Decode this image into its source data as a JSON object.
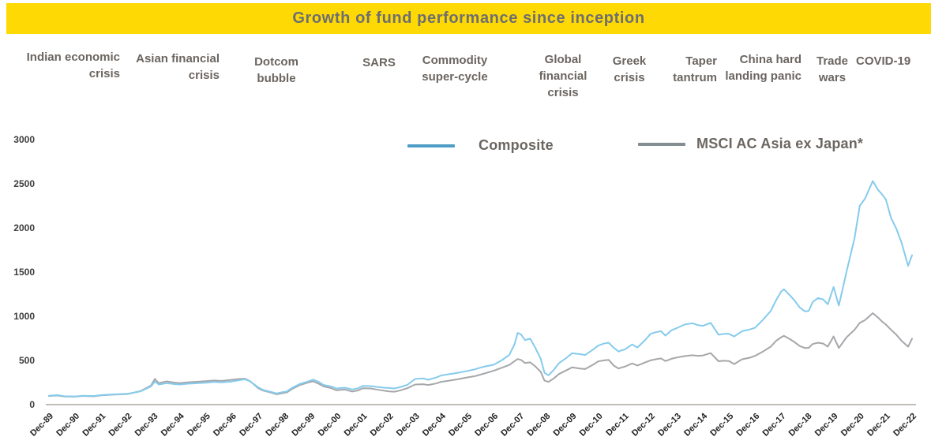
{
  "banner": {
    "title": "Growth of fund performance since inception",
    "background_color": "#FFD903",
    "text_color": "#6D6E71"
  },
  "crisis_labels": [
    "Indian economic crisis",
    "Asian financial crisis",
    "Dotcom bubble",
    "SARS",
    "Commodity super-cycle",
    "Global financial crisis",
    "Greek crisis",
    "Taper tantrum",
    "China hard landing panic",
    "Trade wars",
    "COVID-19"
  ],
  "legend": [
    {
      "label": "Composite",
      "color": "#4E9DC6"
    },
    {
      "label": "MSCI AC Asia ex Japan*",
      "color": "#838D94"
    }
  ],
  "chart_data": {
    "type": "line",
    "title": "Growth of fund performance since inception",
    "xlabel": "",
    "ylabel": "",
    "ylim": [
      0,
      3000
    ],
    "grid": false,
    "legend_position": "top",
    "axis_color": "#9C968C",
    "y_ticks": [
      0,
      500,
      1000,
      1500,
      2000,
      2500,
      3000
    ],
    "x_labels": [
      "Dec-89",
      "Dec-90",
      "Dec-91",
      "Dec-92",
      "Dec-93",
      "Dec-94",
      "Dec-95",
      "Dec-96",
      "Dec-97",
      "Dec-98",
      "Dec-99",
      "Dec-00",
      "Dec-01",
      "Dec-02",
      "Dec-03",
      "Dec-04",
      "Dec-05",
      "Dec-06",
      "Dec-07",
      "Dec-08",
      "Dec-09",
      "Dec-10",
      "Dec-11",
      "Dec-12",
      "Dec-13",
      "Dec-14",
      "Dec-15",
      "Dec-16",
      "Dec-17",
      "Dec-18",
      "Dec-19",
      "Dec-20",
      "Dec-21",
      "Dec-22"
    ],
    "x_unit": "years since Dec-1989",
    "series": [
      {
        "id": "msci-line",
        "name": "MSCI AC Asia ex Japan*",
        "color": "#A5A7AA",
        "points": [
          [
            0,
            97
          ],
          [
            0.3,
            104
          ],
          [
            0.6,
            92
          ],
          [
            1,
            90
          ],
          [
            1.3,
            98
          ],
          [
            1.7,
            94
          ],
          [
            2,
            105
          ],
          [
            2.5,
            113
          ],
          [
            3,
            120
          ],
          [
            3.5,
            153
          ],
          [
            3.9,
            215
          ],
          [
            4.05,
            291
          ],
          [
            4.2,
            243
          ],
          [
            4.5,
            263
          ],
          [
            4.8,
            249
          ],
          [
            5,
            243
          ],
          [
            5.3,
            252
          ],
          [
            5.6,
            258
          ],
          [
            6,
            266
          ],
          [
            6.3,
            273
          ],
          [
            6.6,
            269
          ],
          [
            7,
            281
          ],
          [
            7.3,
            291
          ],
          [
            7.5,
            293
          ],
          [
            7.7,
            263
          ],
          [
            8,
            186
          ],
          [
            8.2,
            158
          ],
          [
            8.5,
            136
          ],
          [
            8.7,
            117
          ],
          [
            8.9,
            129
          ],
          [
            9.1,
            139
          ],
          [
            9.3,
            178
          ],
          [
            9.6,
            222
          ],
          [
            9.9,
            250
          ],
          [
            10.1,
            263
          ],
          [
            10.3,
            238
          ],
          [
            10.5,
            206
          ],
          [
            10.8,
            186
          ],
          [
            11,
            162
          ],
          [
            11.3,
            171
          ],
          [
            11.6,
            148
          ],
          [
            11.8,
            159
          ],
          [
            12,
            186
          ],
          [
            12.3,
            183
          ],
          [
            12.5,
            172
          ],
          [
            12.8,
            158
          ],
          [
            13,
            150
          ],
          [
            13.2,
            146
          ],
          [
            13.4,
            158
          ],
          [
            13.7,
            186
          ],
          [
            14,
            228
          ],
          [
            14.3,
            231
          ],
          [
            14.5,
            222
          ],
          [
            14.8,
            239
          ],
          [
            15,
            258
          ],
          [
            15.3,
            271
          ],
          [
            15.6,
            286
          ],
          [
            16,
            308
          ],
          [
            16.3,
            323
          ],
          [
            16.6,
            348
          ],
          [
            17,
            383
          ],
          [
            17.3,
            416
          ],
          [
            17.6,
            449
          ],
          [
            17.8,
            492
          ],
          [
            17.92,
            516
          ],
          [
            18.05,
            506
          ],
          [
            18.2,
            471
          ],
          [
            18.4,
            479
          ],
          [
            18.6,
            431
          ],
          [
            18.8,
            371
          ],
          [
            18.95,
            271
          ],
          [
            19.1,
            257
          ],
          [
            19.3,
            296
          ],
          [
            19.5,
            346
          ],
          [
            19.8,
            391
          ],
          [
            20,
            421
          ],
          [
            20.3,
            409
          ],
          [
            20.5,
            403
          ],
          [
            20.8,
            451
          ],
          [
            21,
            489
          ],
          [
            21.2,
            500
          ],
          [
            21.4,
            506
          ],
          [
            21.6,
            441
          ],
          [
            21.78,
            409
          ],
          [
            21.9,
            421
          ],
          [
            22,
            429
          ],
          [
            22.3,
            466
          ],
          [
            22.5,
            443
          ],
          [
            22.8,
            479
          ],
          [
            23,
            501
          ],
          [
            23.2,
            513
          ],
          [
            23.4,
            523
          ],
          [
            23.57,
            493
          ],
          [
            23.8,
            519
          ],
          [
            24,
            533
          ],
          [
            24.3,
            549
          ],
          [
            24.6,
            559
          ],
          [
            24.8,
            553
          ],
          [
            25,
            556
          ],
          [
            25.3,
            583
          ],
          [
            25.6,
            491
          ],
          [
            25.8,
            496
          ],
          [
            26,
            493
          ],
          [
            26.2,
            459
          ],
          [
            26.5,
            513
          ],
          [
            26.8,
            531
          ],
          [
            27,
            553
          ],
          [
            27.3,
            601
          ],
          [
            27.6,
            656
          ],
          [
            27.8,
            721
          ],
          [
            28,
            763
          ],
          [
            28.1,
            779
          ],
          [
            28.3,
            746
          ],
          [
            28.5,
            709
          ],
          [
            28.7,
            663
          ],
          [
            28.9,
            641
          ],
          [
            29.05,
            643
          ],
          [
            29.2,
            686
          ],
          [
            29.4,
            701
          ],
          [
            29.6,
            691
          ],
          [
            29.78,
            656
          ],
          [
            30,
            771
          ],
          [
            30.2,
            641
          ],
          [
            30.5,
            763
          ],
          [
            30.8,
            846
          ],
          [
            31,
            926
          ],
          [
            31.2,
            956
          ],
          [
            31.5,
            1036
          ],
          [
            31.7,
            986
          ],
          [
            31.85,
            941
          ],
          [
            32,
            906
          ],
          [
            32.2,
            846
          ],
          [
            32.4,
            791
          ],
          [
            32.6,
            721
          ],
          [
            32.85,
            656
          ],
          [
            33,
            746
          ]
        ]
      },
      {
        "id": "composite-line",
        "name": "Composite",
        "color": "#85CBEC",
        "points": [
          [
            0,
            100
          ],
          [
            0.3,
            108
          ],
          [
            0.6,
            95
          ],
          [
            1,
            93
          ],
          [
            1.3,
            101
          ],
          [
            1.7,
            97
          ],
          [
            2,
            108
          ],
          [
            2.5,
            116
          ],
          [
            3,
            122
          ],
          [
            3.5,
            150
          ],
          [
            3.9,
            205
          ],
          [
            4.05,
            262
          ],
          [
            4.2,
            228
          ],
          [
            4.5,
            243
          ],
          [
            4.8,
            232
          ],
          [
            5,
            228
          ],
          [
            5.3,
            237
          ],
          [
            5.6,
            241
          ],
          [
            6,
            248
          ],
          [
            6.3,
            256
          ],
          [
            6.6,
            252
          ],
          [
            7,
            262
          ],
          [
            7.3,
            278
          ],
          [
            7.5,
            287
          ],
          [
            7.7,
            262
          ],
          [
            8,
            195
          ],
          [
            8.2,
            165
          ],
          [
            8.5,
            143
          ],
          [
            8.7,
            127
          ],
          [
            8.9,
            140
          ],
          [
            9.1,
            150
          ],
          [
            9.3,
            190
          ],
          [
            9.6,
            235
          ],
          [
            9.9,
            262
          ],
          [
            10.1,
            283
          ],
          [
            10.3,
            260
          ],
          [
            10.5,
            222
          ],
          [
            10.8,
            205
          ],
          [
            11,
            183
          ],
          [
            11.3,
            192
          ],
          [
            11.6,
            172
          ],
          [
            11.8,
            183
          ],
          [
            12,
            212
          ],
          [
            12.3,
            210
          ],
          [
            12.5,
            202
          ],
          [
            12.8,
            192
          ],
          [
            13,
            188
          ],
          [
            13.2,
            183
          ],
          [
            13.4,
            196
          ],
          [
            13.7,
            223
          ],
          [
            14,
            290
          ],
          [
            14.3,
            296
          ],
          [
            14.5,
            281
          ],
          [
            14.8,
            306
          ],
          [
            15,
            330
          ],
          [
            15.3,
            345
          ],
          [
            15.6,
            358
          ],
          [
            16,
            381
          ],
          [
            16.3,
            401
          ],
          [
            16.6,
            428
          ],
          [
            17,
            451
          ],
          [
            17.3,
            500
          ],
          [
            17.6,
            562
          ],
          [
            17.8,
            683
          ],
          [
            17.92,
            812
          ],
          [
            18.05,
            795
          ],
          [
            18.2,
            731
          ],
          [
            18.4,
            746
          ],
          [
            18.6,
            640
          ],
          [
            18.8,
            520
          ],
          [
            18.95,
            360
          ],
          [
            19.1,
            332
          ],
          [
            19.3,
            392
          ],
          [
            19.5,
            470
          ],
          [
            19.8,
            532
          ],
          [
            20,
            581
          ],
          [
            20.3,
            571
          ],
          [
            20.5,
            562
          ],
          [
            20.8,
            622
          ],
          [
            21,
            668
          ],
          [
            21.2,
            690
          ],
          [
            21.4,
            701
          ],
          [
            21.6,
            642
          ],
          [
            21.78,
            601
          ],
          [
            21.9,
            616
          ],
          [
            22,
            621
          ],
          [
            22.3,
            681
          ],
          [
            22.5,
            646
          ],
          [
            22.8,
            732
          ],
          [
            23,
            801
          ],
          [
            23.2,
            820
          ],
          [
            23.4,
            831
          ],
          [
            23.57,
            781
          ],
          [
            23.8,
            841
          ],
          [
            24,
            866
          ],
          [
            24.3,
            906
          ],
          [
            24.6,
            921
          ],
          [
            24.8,
            901
          ],
          [
            25,
            891
          ],
          [
            25.3,
            926
          ],
          [
            25.6,
            791
          ],
          [
            25.8,
            801
          ],
          [
            26,
            801
          ],
          [
            26.2,
            771
          ],
          [
            26.5,
            831
          ],
          [
            26.8,
            851
          ],
          [
            27,
            871
          ],
          [
            27.3,
            961
          ],
          [
            27.6,
            1061
          ],
          [
            27.8,
            1181
          ],
          [
            28,
            1281
          ],
          [
            28.1,
            1306
          ],
          [
            28.3,
            1246
          ],
          [
            28.5,
            1181
          ],
          [
            28.7,
            1101
          ],
          [
            28.9,
            1056
          ],
          [
            29.05,
            1062
          ],
          [
            29.2,
            1161
          ],
          [
            29.4,
            1206
          ],
          [
            29.6,
            1191
          ],
          [
            29.78,
            1136
          ],
          [
            30,
            1331
          ],
          [
            30.2,
            1121
          ],
          [
            30.5,
            1511
          ],
          [
            30.8,
            1881
          ],
          [
            31,
            2251
          ],
          [
            31.2,
            2331
          ],
          [
            31.5,
            2531
          ],
          [
            31.7,
            2431
          ],
          [
            31.85,
            2381
          ],
          [
            32,
            2321
          ],
          [
            32.2,
            2111
          ],
          [
            32.4,
            1991
          ],
          [
            32.6,
            1831
          ],
          [
            32.85,
            1571
          ],
          [
            33,
            1691
          ]
        ]
      }
    ]
  }
}
